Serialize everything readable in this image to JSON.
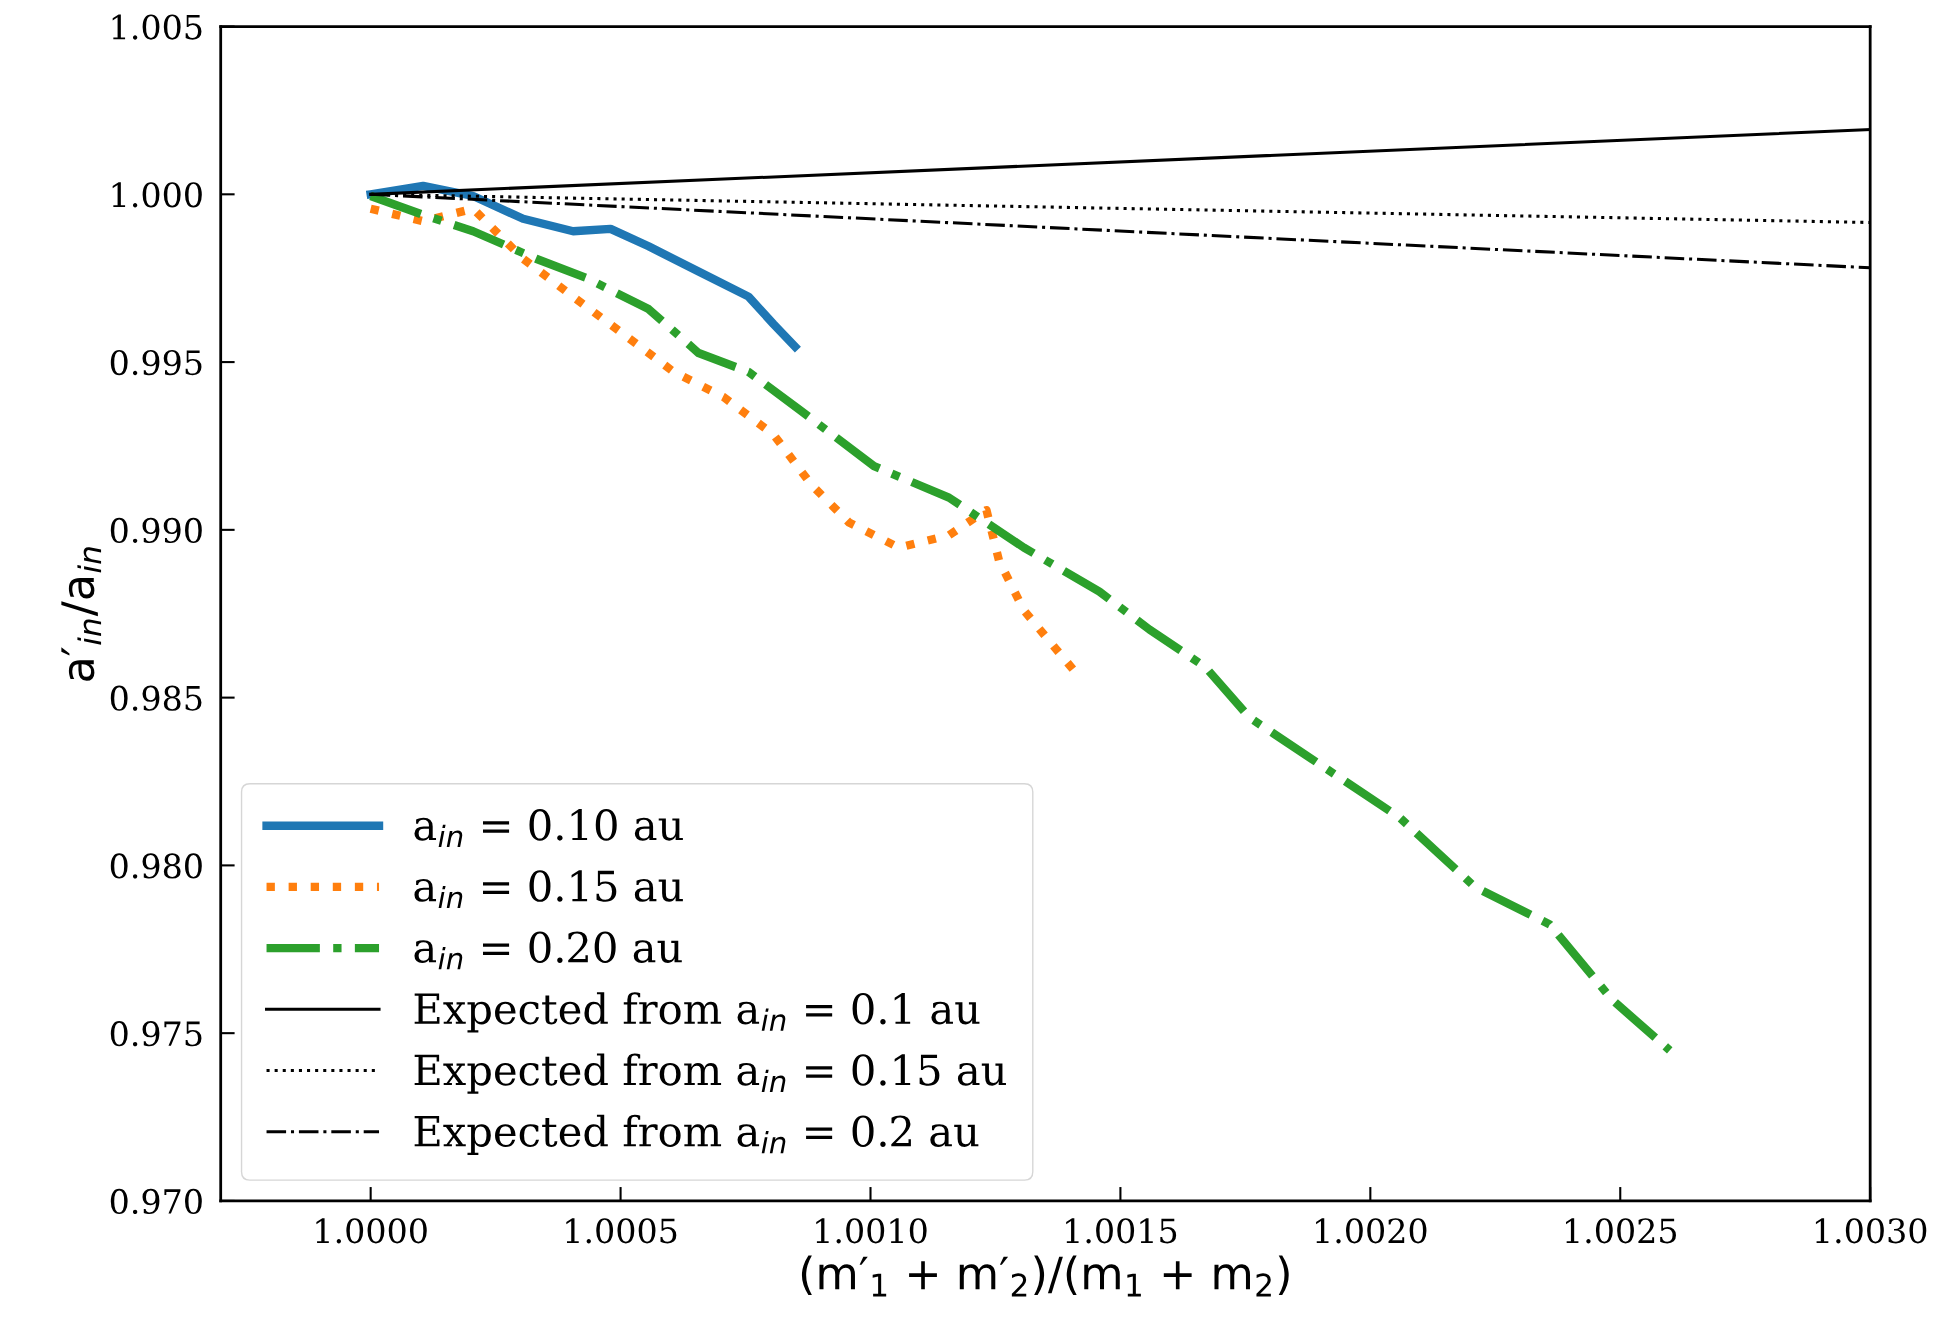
{
  "chart_data": {
    "type": "line",
    "xlabel": "(m′$_{1}$ + m′$_{2}$)/(m$_{1}$ + m$_{2}$)",
    "ylabel": "a′$_{in}$/a$_{in}$",
    "xlim": [
      0.9997,
      1.003
    ],
    "xticks": [
      {
        "value": 1.0,
        "label": "1.0000"
      },
      {
        "value": 1.0005,
        "label": "1.0005"
      },
      {
        "value": 1.001,
        "label": "1.0010"
      },
      {
        "value": 1.0015,
        "label": "1.0015"
      },
      {
        "value": 1.002,
        "label": "1.0020"
      },
      {
        "value": 1.0025,
        "label": "1.0025"
      },
      {
        "value": 1.003,
        "label": "1.0030"
      }
    ],
    "ylim": [
      0.97,
      1.005
    ],
    "yticks": [
      {
        "value": 0.97,
        "label": "0.970"
      },
      {
        "value": 0.975,
        "label": "0.975"
      },
      {
        "value": 0.98,
        "label": "0.980"
      },
      {
        "value": 0.985,
        "label": "0.985"
      },
      {
        "value": 0.99,
        "label": "0.990"
      },
      {
        "value": 0.995,
        "label": "0.995"
      },
      {
        "value": 1.0,
        "label": "1.000"
      },
      {
        "value": 1.005,
        "label": "1.005"
      }
    ],
    "grid": false,
    "legend": "bottom left",
    "marker": "none",
    "series": [
      {
        "name": "a$_{in}$ = 0.10 au",
        "color": "#1f77b4",
        "line_style": "solid",
        "x": [
          1.0,
          1.000105,
          1.000205,
          1.000305,
          1.000405,
          1.00048,
          1.000556,
          1.000656,
          1.000756,
          1.000806,
          1.000849
        ],
        "values": [
          1.0,
          1.00025,
          0.99995,
          0.99927,
          0.9989,
          0.99897,
          0.99845,
          0.9977,
          0.99695,
          0.99613,
          0.99546
        ]
      },
      {
        "name": "a$_{in}$ = 0.15 au",
        "color": "#ff7f0e",
        "line_style": "dotted",
        "x": [
          1.0,
          1.000105,
          1.000205,
          1.000305,
          1.000405,
          1.000506,
          1.000606,
          1.000706,
          1.000806,
          1.000882,
          1.000957,
          1.001057,
          1.001157,
          1.001232,
          1.001257,
          1.001307,
          1.00137,
          1.001412
        ],
        "values": [
          0.99957,
          0.9992,
          0.99957,
          0.99808,
          0.99695,
          0.99583,
          0.99471,
          0.99396,
          0.99284,
          0.99134,
          0.99022,
          0.98947,
          0.98984,
          0.99059,
          0.98909,
          0.9876,
          0.98647,
          0.98572
        ]
      },
      {
        "name": "a$_{in}$ = 0.20 au",
        "color": "#2ca02c",
        "line_style": "dashdot",
        "x": [
          1.0,
          1.000105,
          1.000205,
          1.000331,
          1.000431,
          1.000556,
          1.000656,
          1.000756,
          1.000857,
          1.001007,
          1.001157,
          1.001307,
          1.001458,
          1.001558,
          1.00167,
          1.001758,
          1.001908,
          1.002059,
          1.002209,
          1.002359,
          1.002484,
          1.002599
        ],
        "values": [
          0.99995,
          0.99939,
          0.9989,
          0.99808,
          0.99751,
          0.99658,
          0.99527,
          0.99471,
          0.99359,
          0.9919,
          0.99096,
          0.98947,
          0.98816,
          0.98703,
          0.98591,
          0.98441,
          0.98292,
          0.98142,
          0.97936,
          0.97824,
          0.97599,
          0.97449
        ]
      },
      {
        "name": "Expected from a$_{in}$ = 0.1 au",
        "color": "#000000",
        "line_style": "solid",
        "x": [
          1.0,
          1.003
        ],
        "values": [
          1.0,
          1.00193
        ]
      },
      {
        "name": "Expected from a$_{in}$ = 0.15 au",
        "color": "#000000",
        "line_style": "dotted",
        "x": [
          1.0,
          1.003
        ],
        "values": [
          1.0,
          0.99916
        ]
      },
      {
        "name": "Expected from a$_{in}$ = 0.2 au",
        "color": "#000000",
        "line_style": "dashdot",
        "x": [
          1.0,
          1.003
        ],
        "values": [
          1.0,
          0.99781
        ]
      }
    ]
  }
}
